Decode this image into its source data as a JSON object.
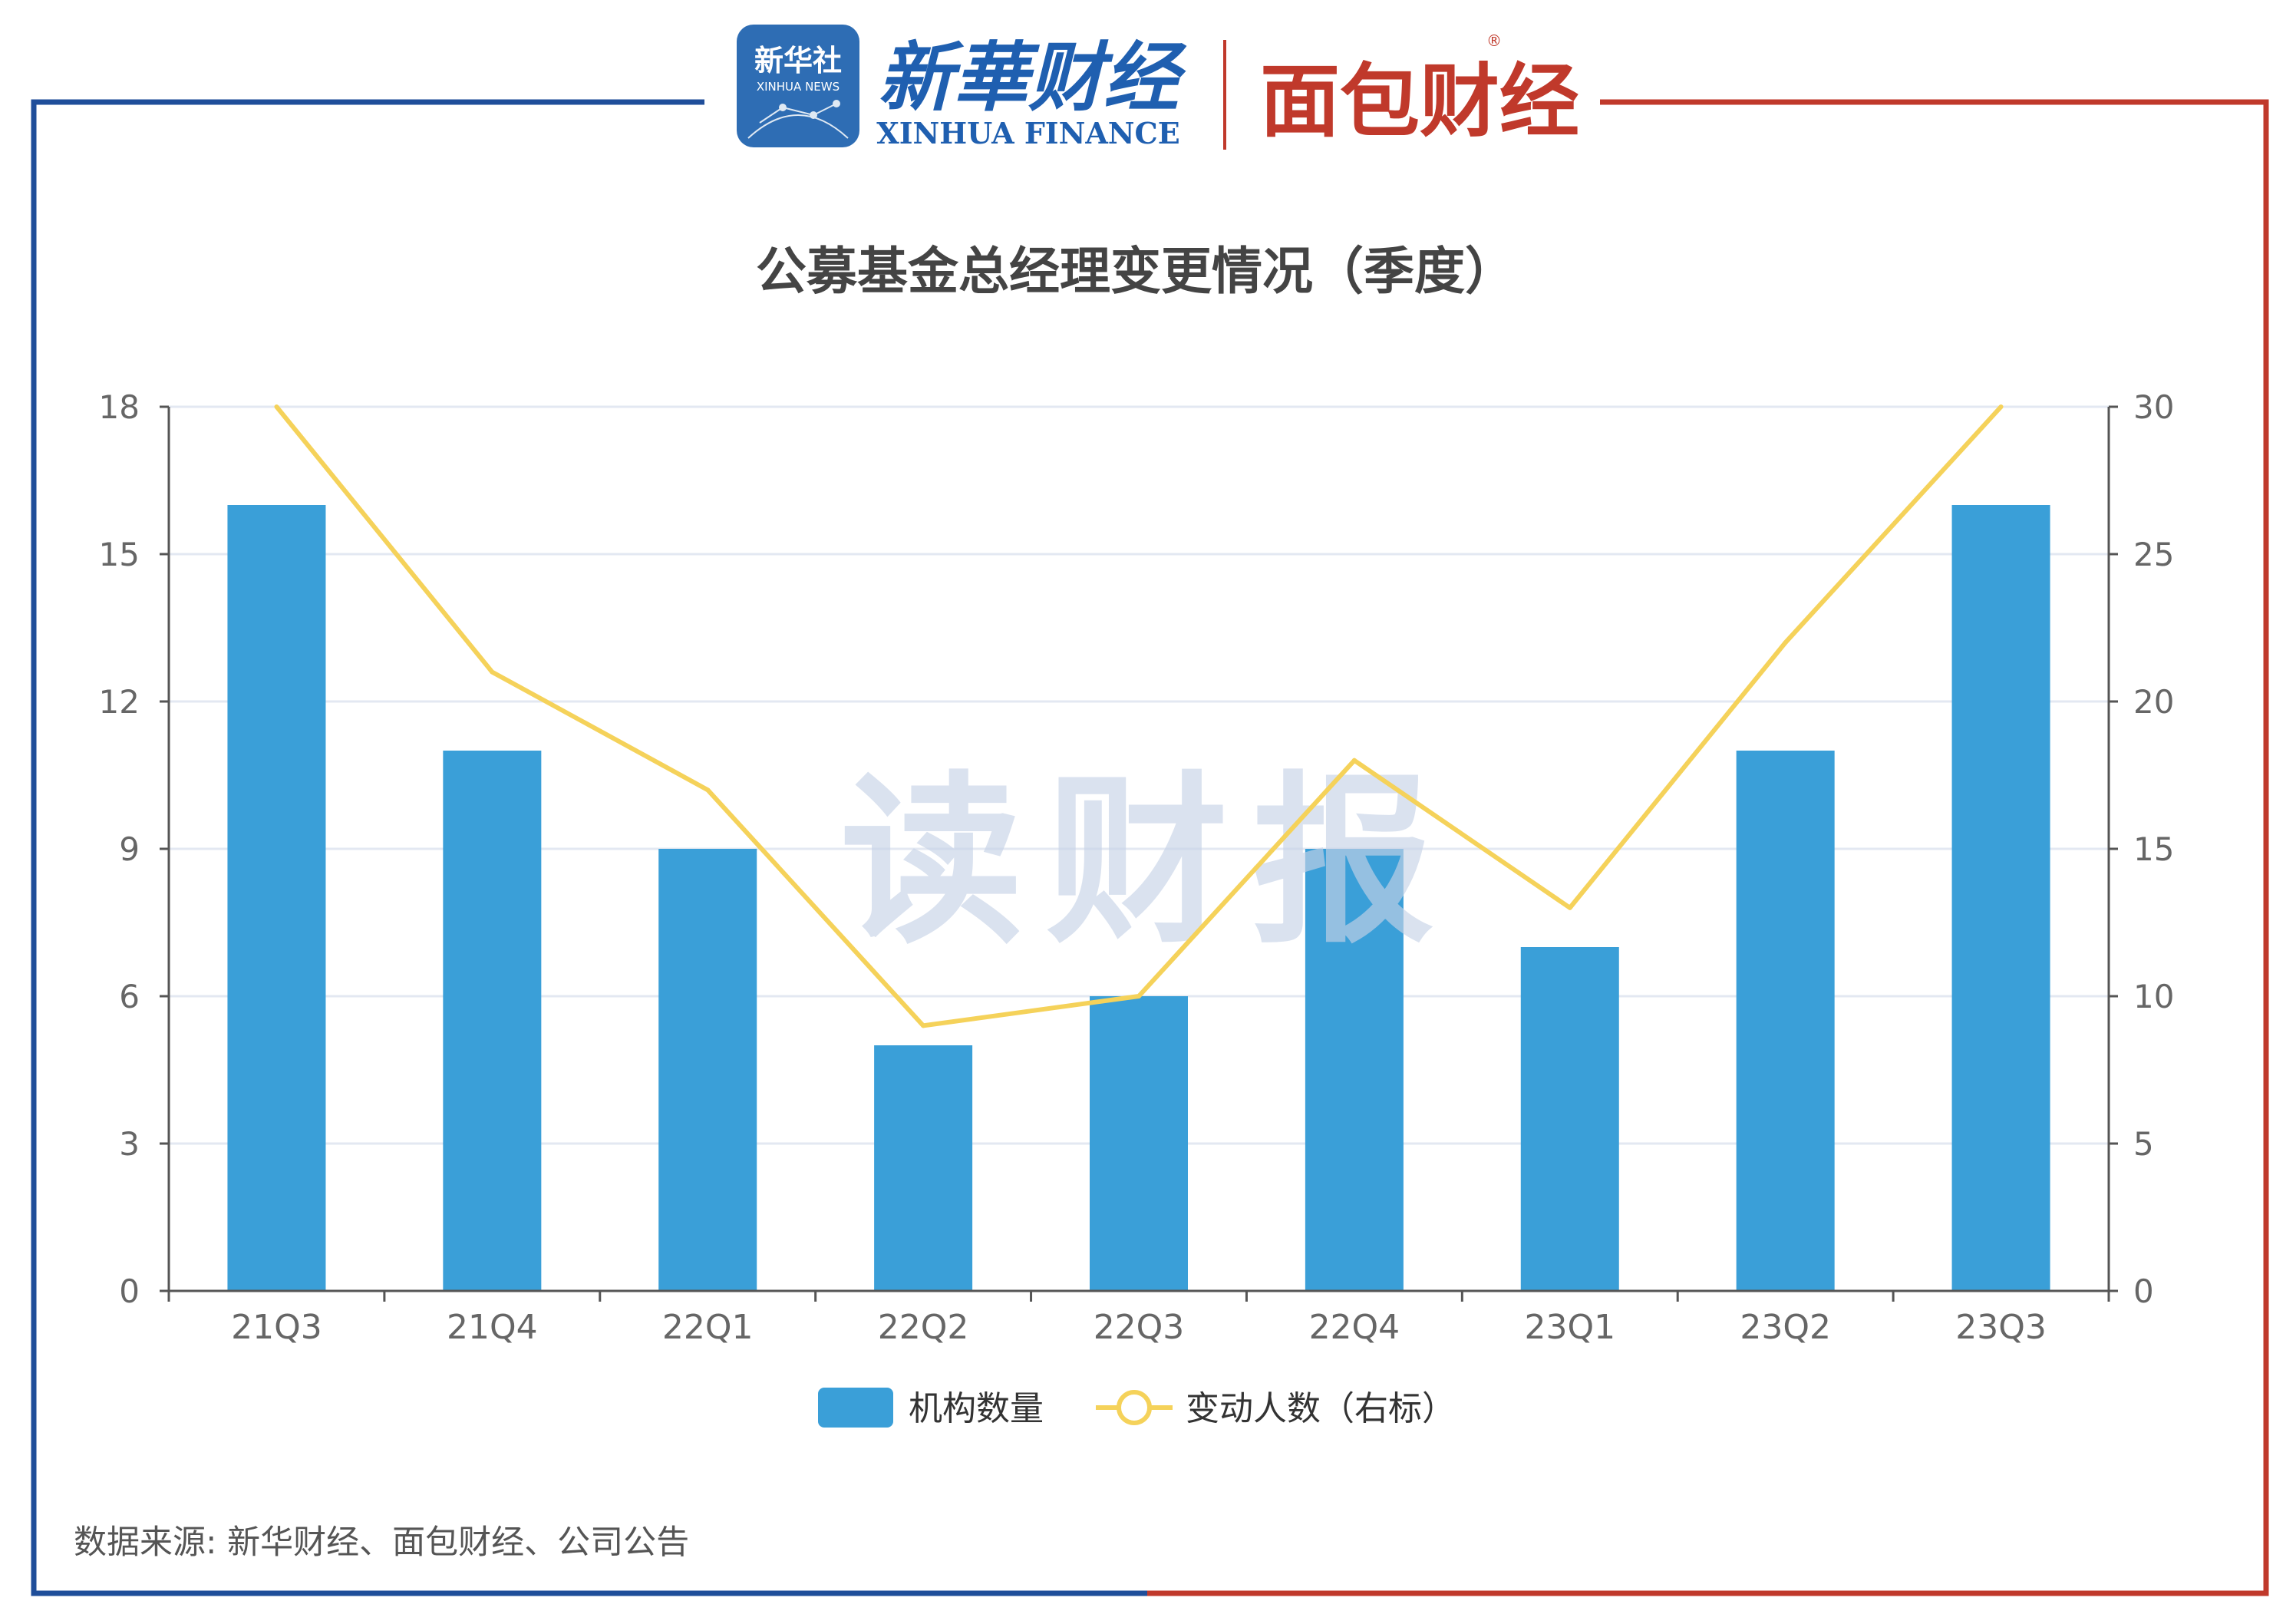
{
  "header": {
    "logo_xinhua_she_cn": "新华社",
    "logo_xinhua_she_en": "XINHUA NEWS",
    "logo_xinhua_finance_cn": "新華财经",
    "logo_xinhua_finance_en": "XINHUA FINANCE",
    "logo_mianbao_cn": "面包财经",
    "registered_mark": "®"
  },
  "watermark": "读财报",
  "source_note": "数据来源: 新华财经、面包财经、公司公告",
  "colors": {
    "frame_left": "#1f4e9a",
    "frame_right": "#c0392b",
    "bar": "#3a9fd8",
    "line": "#f5d25a",
    "grid": "#e3e8f2",
    "axis": "#555555",
    "tick_text": "#666666",
    "title": "#444444"
  },
  "chart_data": {
    "type": "bar",
    "title": "公募基金总经理变更情况（季度）",
    "categories": [
      "21Q3",
      "21Q4",
      "22Q1",
      "22Q2",
      "22Q3",
      "22Q4",
      "23Q1",
      "23Q2",
      "23Q3"
    ],
    "series": [
      {
        "name": "机构数量",
        "type": "bar",
        "axis": "left",
        "values": [
          16,
          11,
          9,
          5,
          6,
          9,
          7,
          11,
          16
        ]
      },
      {
        "name": "变动人数（右标）",
        "type": "line",
        "axis": "right",
        "values": [
          30,
          21,
          17,
          9,
          10,
          18,
          13,
          22,
          30
        ]
      }
    ],
    "y_left": {
      "min": 0,
      "max": 18,
      "ticks": [
        0,
        3,
        6,
        9,
        12,
        15,
        18
      ]
    },
    "y_right": {
      "min": 0,
      "max": 30,
      "ticks": [
        0,
        5,
        10,
        15,
        20,
        25,
        30
      ]
    },
    "grid": true,
    "legend_position": "bottom-center"
  }
}
